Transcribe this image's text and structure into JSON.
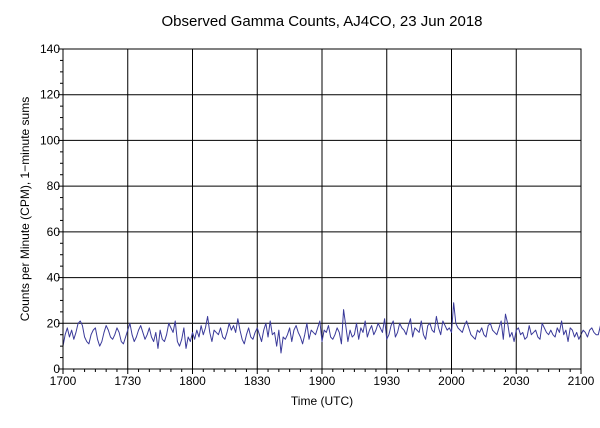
{
  "chart_data": {
    "type": "line",
    "title": "Observed Gamma Counts, AJ4CO, 23 Jun 2018",
    "xlabel": "Time (UTC)",
    "ylabel": "Counts per Minute (CPM), 1−minute sums",
    "x_ticks": [
      "1700",
      "1730",
      "1800",
      "1830",
      "1900",
      "1930",
      "2000",
      "2030",
      "2100"
    ],
    "y_ticks": [
      "0",
      "20",
      "40",
      "60",
      "80",
      "100",
      "120",
      "140"
    ],
    "xlim_minutes": [
      0,
      240
    ],
    "ylim": [
      0,
      140
    ],
    "grid": true,
    "legend": "none",
    "line_color": "#3a3a9a",
    "series": [
      {
        "x_start": "1700",
        "x_step_minutes": 1,
        "values": [
          10,
          15,
          18,
          14,
          17,
          13,
          16,
          20,
          21,
          19,
          14,
          12,
          11,
          15,
          17,
          18,
          13,
          10,
          12,
          16,
          19,
          17,
          14,
          13,
          15,
          18,
          16,
          12,
          11,
          14,
          17,
          20,
          15,
          12,
          14,
          17,
          19,
          16,
          13,
          15,
          18,
          14,
          12,
          16,
          9,
          17,
          13,
          12,
          15,
          20,
          18,
          16,
          21,
          12,
          10,
          13,
          18,
          9,
          14,
          12,
          16,
          13,
          17,
          14,
          19,
          15,
          18,
          23,
          16,
          12,
          17,
          16,
          15,
          18,
          14,
          13,
          16,
          20,
          17,
          19,
          16,
          22,
          17,
          13,
          11,
          15,
          18,
          14,
          13,
          16,
          18,
          15,
          12,
          17,
          20,
          14,
          21,
          15,
          16,
          10,
          17,
          7,
          14,
          13,
          15,
          18,
          12,
          17,
          19,
          16,
          14,
          11,
          15,
          20,
          13,
          17,
          16,
          15,
          18,
          21,
          12,
          17,
          16,
          19,
          14,
          13,
          15,
          18,
          16,
          11,
          26,
          19,
          12,
          17,
          14,
          15,
          20,
          13,
          18,
          16,
          21,
          14,
          17,
          19,
          15,
          17,
          20,
          18,
          16,
          22,
          13,
          15,
          19,
          21,
          14,
          16,
          20,
          18,
          17,
          15,
          19,
          22,
          14,
          18,
          17,
          16,
          21,
          15,
          13,
          19,
          20,
          17,
          16,
          23,
          18,
          15,
          21,
          19,
          17,
          18,
          16,
          29,
          20,
          18,
          17,
          16,
          19,
          21,
          18,
          15,
          14,
          13,
          17,
          16,
          18,
          15,
          14,
          19,
          20,
          17,
          16,
          15,
          18,
          21,
          13,
          24,
          20,
          14,
          16,
          12,
          17,
          18,
          15,
          16,
          13,
          14,
          19,
          15,
          16,
          17,
          14,
          13,
          20,
          18,
          16,
          15,
          17,
          15,
          14,
          18,
          16,
          21,
          15,
          17,
          12,
          18,
          17,
          14,
          16,
          13,
          15,
          17,
          16,
          14,
          17,
          18,
          16,
          15,
          15,
          19,
          16,
          17,
          12,
          16,
          18,
          22,
          15,
          16,
          14,
          17,
          19,
          15,
          11,
          15,
          18,
          15,
          13,
          16,
          12,
          11,
          14,
          11,
          13,
          15
        ]
      }
    ]
  }
}
